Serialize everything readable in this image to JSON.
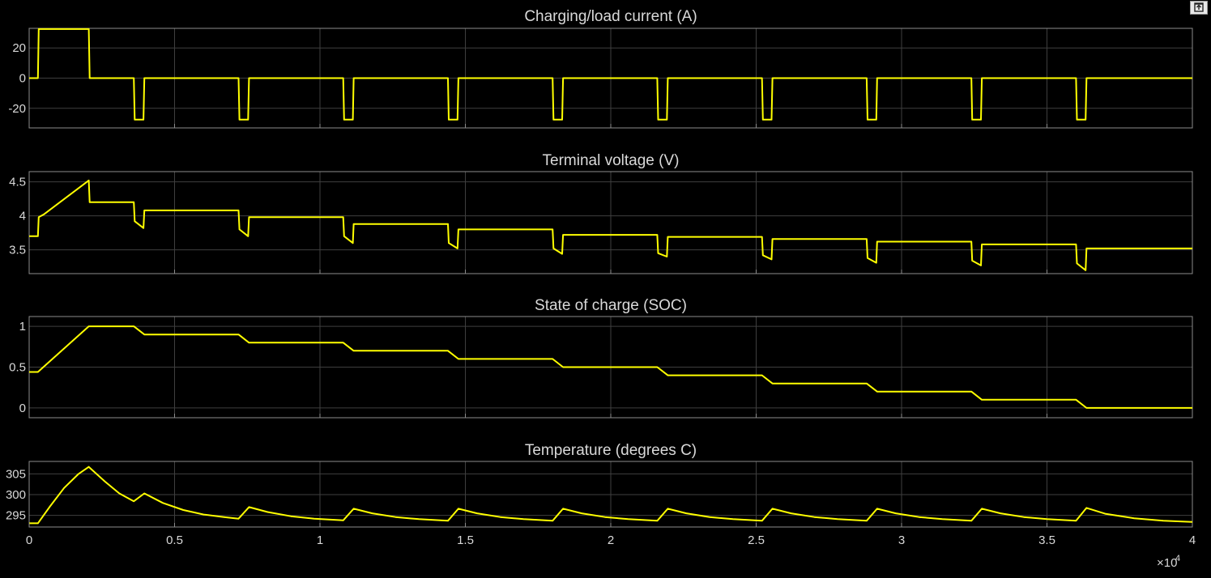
{
  "window": {
    "restore_button_icon": "undock-icon"
  },
  "colors": {
    "background": "#000000",
    "axes_border": "#8c8c8c",
    "grid": "#3f3f3f",
    "text": "#d9d9d9",
    "trace": "#ffff00"
  },
  "x_axis": {
    "ticks": [
      0,
      0.5,
      1,
      1.5,
      2,
      2.5,
      3,
      3.5,
      4
    ],
    "tick_labels": [
      "0",
      "0.5",
      "1",
      "1.5",
      "2",
      "2.5",
      "3",
      "3.5",
      "4"
    ],
    "range": [
      0,
      40000
    ],
    "exponent_label": "×10",
    "exponent_power": "4"
  },
  "chart_data": [
    {
      "type": "line",
      "title": "Charging/load current (A)",
      "xlabel": "",
      "ylabel": "",
      "xlim": [
        0,
        40000
      ],
      "ylim": [
        -33,
        33
      ],
      "yticks": [
        -20,
        0,
        20
      ],
      "ytick_labels": [
        "-20",
        "0",
        "20"
      ],
      "grid": true,
      "series": [
        {
          "x": [
            0,
            300,
            330,
            2050,
            2080,
            3600,
            3630,
            3930,
            3960,
            7200,
            7230,
            7530,
            7560,
            10800,
            10830,
            11130,
            11160,
            14400,
            14430,
            14730,
            14760,
            18000,
            18030,
            18330,
            18360,
            21600,
            21630,
            21930,
            21960,
            25200,
            25230,
            25530,
            25560,
            28800,
            28830,
            29130,
            29160,
            32400,
            32430,
            32730,
            32760,
            36000,
            36030,
            36330,
            36360,
            40000
          ],
          "y": [
            0,
            0,
            32.5,
            32.5,
            0,
            0,
            -27.5,
            -27.5,
            0,
            0,
            -27.5,
            -27.5,
            0,
            0,
            -27.5,
            -27.5,
            0,
            0,
            -27.5,
            -27.5,
            0,
            0,
            -27.5,
            -27.5,
            0,
            0,
            -27.5,
            -27.5,
            0,
            0,
            -27.5,
            -27.5,
            0,
            0,
            -27.5,
            -27.5,
            0,
            0,
            -27.5,
            -27.5,
            0,
            0,
            -27.5,
            -27.5,
            0,
            0
          ]
        }
      ]
    },
    {
      "type": "line",
      "title": "Terminal voltage (V)",
      "xlabel": "",
      "ylabel": "",
      "xlim": [
        0,
        40000
      ],
      "ylim": [
        3.15,
        4.65
      ],
      "yticks": [
        3.5,
        4,
        4.5
      ],
      "ytick_labels": [
        "3.5",
        "4",
        "4.5"
      ],
      "grid": true,
      "series": [
        {
          "x": [
            0,
            300,
            330,
            500,
            2050,
            2080,
            3600,
            3630,
            3930,
            3960,
            7200,
            7230,
            7530,
            7560,
            10800,
            10830,
            11130,
            11160,
            14400,
            14430,
            14730,
            14760,
            18000,
            18030,
            18330,
            18360,
            21600,
            21630,
            21930,
            21960,
            25200,
            25230,
            25530,
            25560,
            28800,
            28830,
            29130,
            29160,
            32400,
            32430,
            32730,
            32760,
            36000,
            36030,
            36330,
            36360,
            40000
          ],
          "y": [
            3.7,
            3.7,
            3.98,
            4.02,
            4.52,
            4.2,
            4.2,
            3.92,
            3.82,
            4.08,
            4.08,
            3.8,
            3.7,
            3.98,
            3.98,
            3.7,
            3.6,
            3.88,
            3.88,
            3.6,
            3.52,
            3.8,
            3.8,
            3.52,
            3.44,
            3.72,
            3.72,
            3.45,
            3.4,
            3.69,
            3.69,
            3.42,
            3.36,
            3.66,
            3.66,
            3.38,
            3.31,
            3.62,
            3.62,
            3.34,
            3.27,
            3.58,
            3.58,
            3.3,
            3.2,
            3.52,
            3.52
          ]
        }
      ]
    },
    {
      "type": "line",
      "title": "State of charge (SOC)",
      "xlabel": "",
      "ylabel": "",
      "xlim": [
        0,
        40000
      ],
      "ylim": [
        -0.12,
        1.12
      ],
      "yticks": [
        0,
        0.5,
        1
      ],
      "ytick_labels": [
        "0",
        "0.5",
        "1"
      ],
      "grid": true,
      "series": [
        {
          "x": [
            0,
            300,
            2050,
            3600,
            3960,
            7200,
            7560,
            10800,
            11160,
            14400,
            14760,
            18000,
            18360,
            21600,
            21960,
            25200,
            25560,
            28800,
            29160,
            32400,
            32760,
            36000,
            36360,
            40000
          ],
          "y": [
            0.44,
            0.44,
            1.0,
            1.0,
            0.9,
            0.9,
            0.8,
            0.8,
            0.7,
            0.7,
            0.6,
            0.6,
            0.5,
            0.5,
            0.4,
            0.4,
            0.3,
            0.3,
            0.2,
            0.2,
            0.1,
            0.1,
            0.0,
            0.0
          ]
        }
      ]
    },
    {
      "type": "line",
      "title": "Temperature (degrees C)",
      "xlabel": "",
      "ylabel": "",
      "xlim": [
        0,
        40000
      ],
      "ylim": [
        292.2,
        308
      ],
      "yticks": [
        295,
        300,
        305
      ],
      "ytick_labels": [
        "295",
        "300",
        "305"
      ],
      "grid": true,
      "series": [
        {
          "x": [
            0,
            300,
            700,
            1200,
            1700,
            2050,
            2600,
            3100,
            3600,
            3960,
            4600,
            5300,
            6000,
            6700,
            7200,
            7560,
            8200,
            9000,
            9800,
            10800,
            11160,
            11800,
            12600,
            13400,
            14400,
            14760,
            15400,
            16200,
            17000,
            18000,
            18360,
            19000,
            19800,
            20600,
            21600,
            21960,
            22600,
            23400,
            24200,
            25200,
            25560,
            26200,
            27000,
            27800,
            28800,
            29160,
            29800,
            30600,
            31400,
            32400,
            32760,
            33400,
            34200,
            35000,
            36000,
            36360,
            37000,
            38000,
            39000,
            40000
          ],
          "y": [
            293.1,
            293.1,
            297.0,
            301.6,
            305.0,
            306.7,
            303.2,
            300.3,
            298.4,
            300.3,
            298.0,
            296.3,
            295.2,
            294.6,
            294.2,
            297.0,
            295.8,
            294.8,
            294.2,
            293.8,
            296.6,
            295.5,
            294.6,
            294.1,
            293.7,
            296.6,
            295.5,
            294.6,
            294.1,
            293.7,
            296.6,
            295.5,
            294.6,
            294.1,
            293.7,
            296.6,
            295.5,
            294.6,
            294.1,
            293.7,
            296.6,
            295.5,
            294.6,
            294.1,
            293.7,
            296.6,
            295.5,
            294.6,
            294.1,
            293.7,
            296.6,
            295.5,
            294.6,
            294.1,
            293.7,
            296.8,
            295.4,
            294.3,
            293.7,
            293.4
          ]
        }
      ]
    }
  ]
}
